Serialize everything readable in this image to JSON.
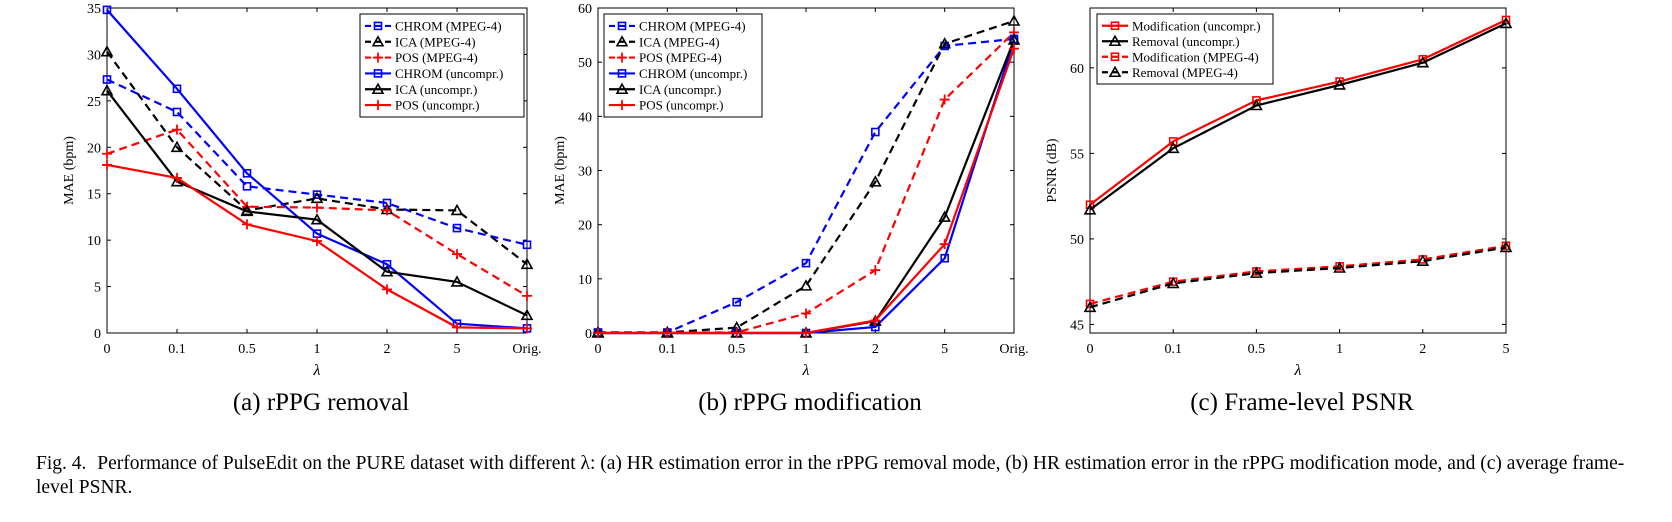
{
  "figure": {
    "caption_label": "Fig. 4.",
    "caption_text": "Performance of PulseEdit on the PURE dataset with different λ: (a) HR estimation error in the rPPG removal mode, (b) HR estimation error in the rPPG modification mode, and (c) average frame-level PSNR."
  },
  "colors": {
    "blue": "#0000ff",
    "black": "#000000",
    "red": "#ff0000"
  },
  "chart_data": [
    {
      "type": "line",
      "subtitle": "(a) rPPG removal",
      "xlabel": "λ",
      "ylabel": "MAE (bpm)",
      "categories": [
        "0",
        "0.1",
        "0.5",
        "1",
        "2",
        "5",
        "Orig."
      ],
      "ylim": [
        0,
        35
      ],
      "yticks": [
        0,
        5,
        10,
        15,
        20,
        25,
        30,
        35
      ],
      "legend_position": "top-right",
      "series": [
        {
          "name": "CHROM (MPEG-4)",
          "color": "blue",
          "dash": true,
          "marker": "square",
          "values": [
            27.3,
            23.8,
            15.8,
            14.9,
            14.0,
            11.3,
            9.5
          ]
        },
        {
          "name": "ICA (MPEG-4)",
          "color": "black",
          "dash": true,
          "marker": "triangle",
          "values": [
            30.3,
            20.0,
            13.2,
            14.5,
            13.3,
            13.2,
            7.4
          ]
        },
        {
          "name": "POS (MPEG-4)",
          "color": "red",
          "dash": true,
          "marker": "plus",
          "values": [
            19.3,
            21.9,
            13.6,
            13.5,
            13.2,
            8.5,
            4.0
          ]
        },
        {
          "name": "CHROM (uncompr.)",
          "color": "blue",
          "dash": false,
          "marker": "square",
          "values": [
            34.8,
            26.3,
            17.2,
            10.7,
            7.4,
            1.0,
            0.5
          ]
        },
        {
          "name": "ICA (uncompr.)",
          "color": "black",
          "dash": false,
          "marker": "triangle",
          "values": [
            26.1,
            16.3,
            13.1,
            12.2,
            6.6,
            5.5,
            1.9
          ]
        },
        {
          "name": "POS (uncompr.)",
          "color": "red",
          "dash": false,
          "marker": "plus",
          "values": [
            18.1,
            16.7,
            11.7,
            9.9,
            4.7,
            0.6,
            0.5
          ]
        }
      ]
    },
    {
      "type": "line",
      "subtitle": "(b) rPPG modification",
      "xlabel": "λ",
      "ylabel": "MAE (bpm)",
      "categories": [
        "0",
        "0.1",
        "0.5",
        "1",
        "2",
        "5",
        "Orig."
      ],
      "ylim": [
        0,
        60
      ],
      "yticks": [
        0,
        10,
        20,
        30,
        40,
        50,
        60
      ],
      "legend_position": "top-left",
      "series": [
        {
          "name": "CHROM (MPEG-4)",
          "color": "blue",
          "dash": true,
          "marker": "square",
          "values": [
            0.1,
            0.1,
            5.7,
            12.9,
            37.1,
            53.0,
            54.3
          ]
        },
        {
          "name": "ICA (MPEG-4)",
          "color": "black",
          "dash": true,
          "marker": "triangle",
          "values": [
            0.1,
            0.1,
            1.0,
            8.7,
            27.9,
            53.4,
            57.6
          ]
        },
        {
          "name": "POS (MPEG-4)",
          "color": "red",
          "dash": true,
          "marker": "plus",
          "values": [
            0.0,
            0.1,
            0.1,
            3.6,
            11.6,
            43.1,
            55.5
          ]
        },
        {
          "name": "CHROM (uncompr.)",
          "color": "blue",
          "dash": false,
          "marker": "square",
          "values": [
            0.0,
            0.0,
            0.0,
            0.0,
            1.1,
            13.8,
            54.0
          ]
        },
        {
          "name": "ICA (uncompr.)",
          "color": "black",
          "dash": false,
          "marker": "triangle",
          "values": [
            0.0,
            0.0,
            0.0,
            0.0,
            2.2,
            21.4,
            54.1
          ]
        },
        {
          "name": "POS (uncompr.)",
          "color": "red",
          "dash": false,
          "marker": "plus",
          "values": [
            0.0,
            0.0,
            0.0,
            0.0,
            2.3,
            16.4,
            52.5
          ]
        }
      ]
    },
    {
      "type": "line",
      "subtitle": "(c) Frame-level PSNR",
      "xlabel": "λ",
      "ylabel": "PSNR (dB)",
      "categories": [
        "0",
        "0.1",
        "0.5",
        "1",
        "2",
        "5"
      ],
      "ylim": [
        44.5,
        63.5
      ],
      "yticks": [
        45,
        50,
        55,
        60
      ],
      "legend_position": "top-left",
      "series": [
        {
          "name": "Modification (uncompr.)",
          "color": "red",
          "dash": false,
          "marker": "square",
          "values": [
            52.0,
            55.7,
            58.1,
            59.2,
            60.5,
            62.8
          ]
        },
        {
          "name": "Removal (uncompr.)",
          "color": "black",
          "dash": false,
          "marker": "triangle",
          "values": [
            51.7,
            55.3,
            57.8,
            59.0,
            60.3,
            62.6
          ]
        },
        {
          "name": "Modification (MPEG-4)",
          "color": "red",
          "dash": true,
          "marker": "square",
          "values": [
            46.2,
            47.5,
            48.1,
            48.4,
            48.8,
            49.6
          ]
        },
        {
          "name": "Removal (MPEG-4)",
          "color": "black",
          "dash": true,
          "marker": "triangle",
          "values": [
            46.0,
            47.4,
            48.0,
            48.3,
            48.7,
            49.5
          ]
        }
      ]
    }
  ]
}
